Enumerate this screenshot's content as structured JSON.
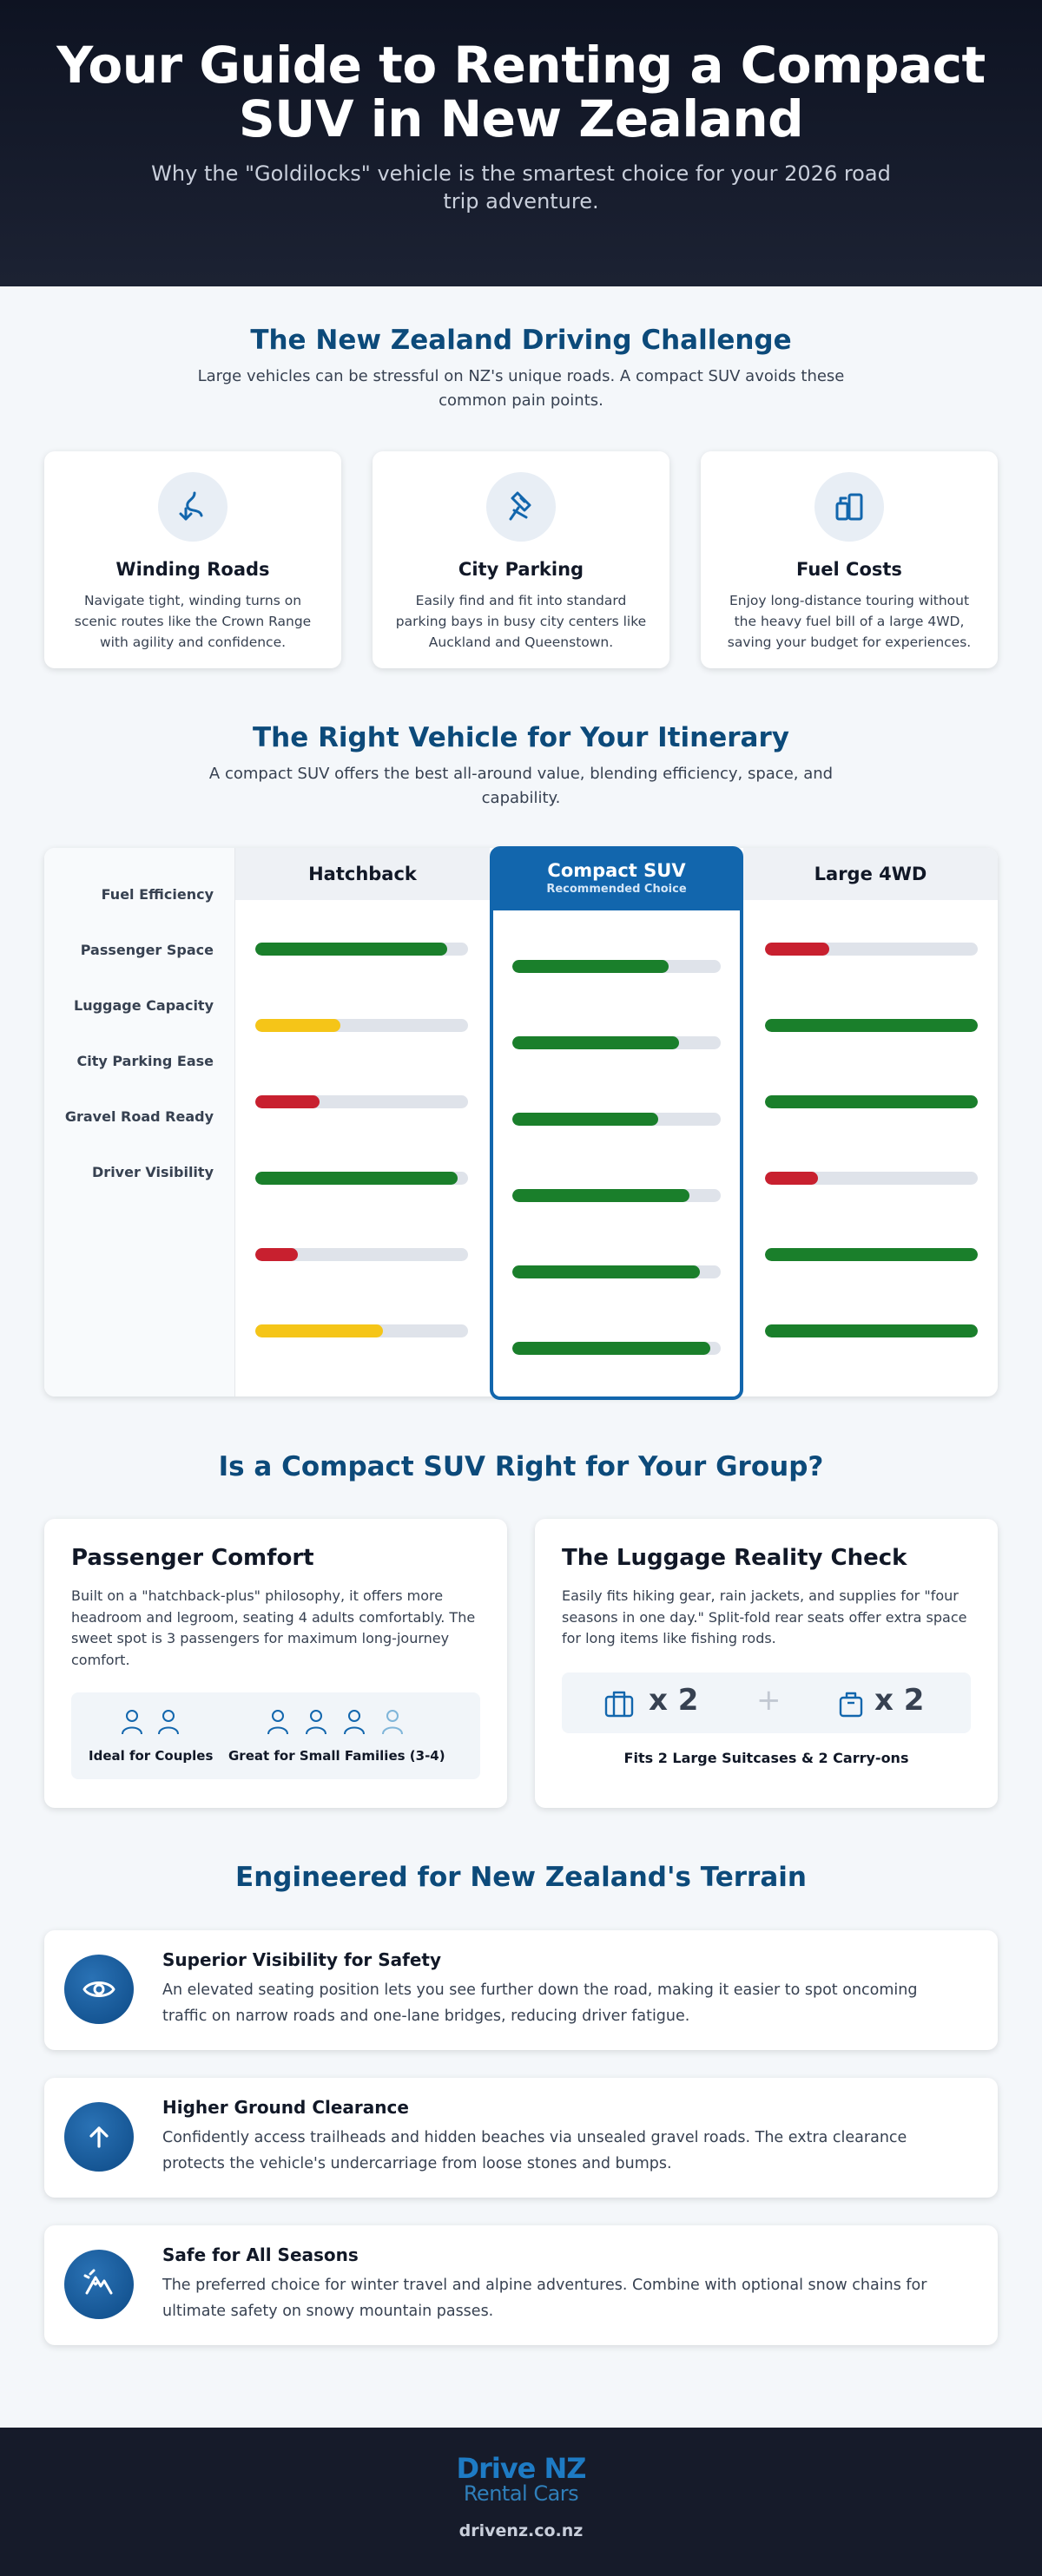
{
  "hero": {
    "title": "Your Guide to Renting a Compact SUV in New Zealand",
    "subtitle": "Why the \"Goldilocks\" vehicle is the smartest choice for your 2026 road trip adventure."
  },
  "challenge": {
    "title": "The New Zealand Driving Challenge",
    "subtitle": "Large vehicles can be stressful on NZ's unique roads. A compact SUV avoids these common pain points.",
    "cards": [
      {
        "icon": "winding-road-icon",
        "title": "Winding Roads",
        "text": "Navigate tight, winding turns on scenic routes like the Crown Range with agility and confidence."
      },
      {
        "icon": "parking-icon",
        "title": "City Parking",
        "text": "Easily find and fit into standard parking bays in busy city centers like Auckland and Queenstown."
      },
      {
        "icon": "fuel-pump-icon",
        "title": "Fuel Costs",
        "text": "Enjoy long-distance touring without the heavy fuel bill of a large 4WD, saving your budget for experiences."
      }
    ]
  },
  "itinerary": {
    "title": "The Right Vehicle for Your Itinerary",
    "subtitle": "A compact SUV offers the best all-around value, blending efficiency, space, and capability.",
    "row_labels": [
      "Fuel Efficiency",
      "Passenger Space",
      "Luggage Capacity",
      "City Parking Ease",
      "Gravel Road Ready",
      "Driver Visibility"
    ],
    "columns": [
      {
        "name": "Hatchback",
        "levels": [
          0.9,
          0.4,
          0.3,
          0.95,
          0.2,
          0.6
        ],
        "colors": [
          "#1a7f2b",
          "#f5c518",
          "#c8202f",
          "#1a7f2b",
          "#c8202f",
          "#f5c518"
        ]
      },
      {
        "name": "Compact SUV",
        "badge": "Recommended Choice",
        "levels": [
          0.75,
          0.8,
          0.7,
          0.85,
          0.9,
          0.95
        ],
        "colors": [
          "#1a7f2b",
          "#1a7f2b",
          "#1a7f2b",
          "#1a7f2b",
          "#1a7f2b",
          "#1a7f2b"
        ]
      },
      {
        "name": "Large 4WD",
        "levels": [
          0.3,
          1.0,
          1.0,
          0.25,
          1.0,
          1.0
        ],
        "colors": [
          "#c8202f",
          "#1a7f2b",
          "#1a7f2b",
          "#c8202f",
          "#1a7f2b",
          "#1a7f2b"
        ]
      }
    ]
  },
  "group": {
    "title": "Is a Compact SUV Right for Your Group?",
    "comfort": {
      "title": "Passenger Comfort",
      "text": "Built on a \"hatchback-plus\" philosophy, it offers more headroom and legroom, seating 4 adults comfortably. The sweet spot is 3 passengers for maximum long-journey comfort.",
      "couples_label": "Ideal for Couples",
      "families_label": "Great for Small Families (3-4)"
    },
    "luggage": {
      "title": "The Luggage Reality Check",
      "text": "Easily fits hiking gear, rain jackets, and supplies for \"four seasons in one day.\" Split-fold rear seats offer extra space for long items like fishing rods.",
      "suitcase_count": "x 2",
      "plus": "+",
      "carryon_count": "x 2",
      "caption": "Fits 2 Large Suitcases & 2 Carry-ons"
    }
  },
  "terrain": {
    "title": "Engineered for New Zealand's Terrain",
    "features": [
      {
        "icon": "eye-icon",
        "title": "Superior Visibility for Safety",
        "text": "An elevated seating position lets you see further down the road, making it easier to spot oncoming traffic on narrow roads and one-lane bridges, reducing driver fatigue."
      },
      {
        "icon": "arrow-up-icon",
        "title": "Higher Ground Clearance",
        "text": "Confidently access trailheads and hidden beaches via unsealed gravel roads. The extra clearance protects the vehicle's undercarriage from loose stones and bumps."
      },
      {
        "icon": "snow-mountain-icon",
        "title": "Safe for All Seasons",
        "text": "The preferred choice for winter travel and alpine adventures. Combine with optional snow chains for ultimate safety on snowy mountain passes."
      }
    ]
  },
  "footer": {
    "brand_main": "Drive NZ",
    "brand_sub": "Rental Cars",
    "url": "drivenz.co.nz"
  },
  "colors": {
    "primary": "#0c4a7a",
    "accent": "#1266ad",
    "good": "#1a7f2b",
    "medium": "#f5c518",
    "poor": "#c8202f",
    "dark": "#161b2a"
  }
}
